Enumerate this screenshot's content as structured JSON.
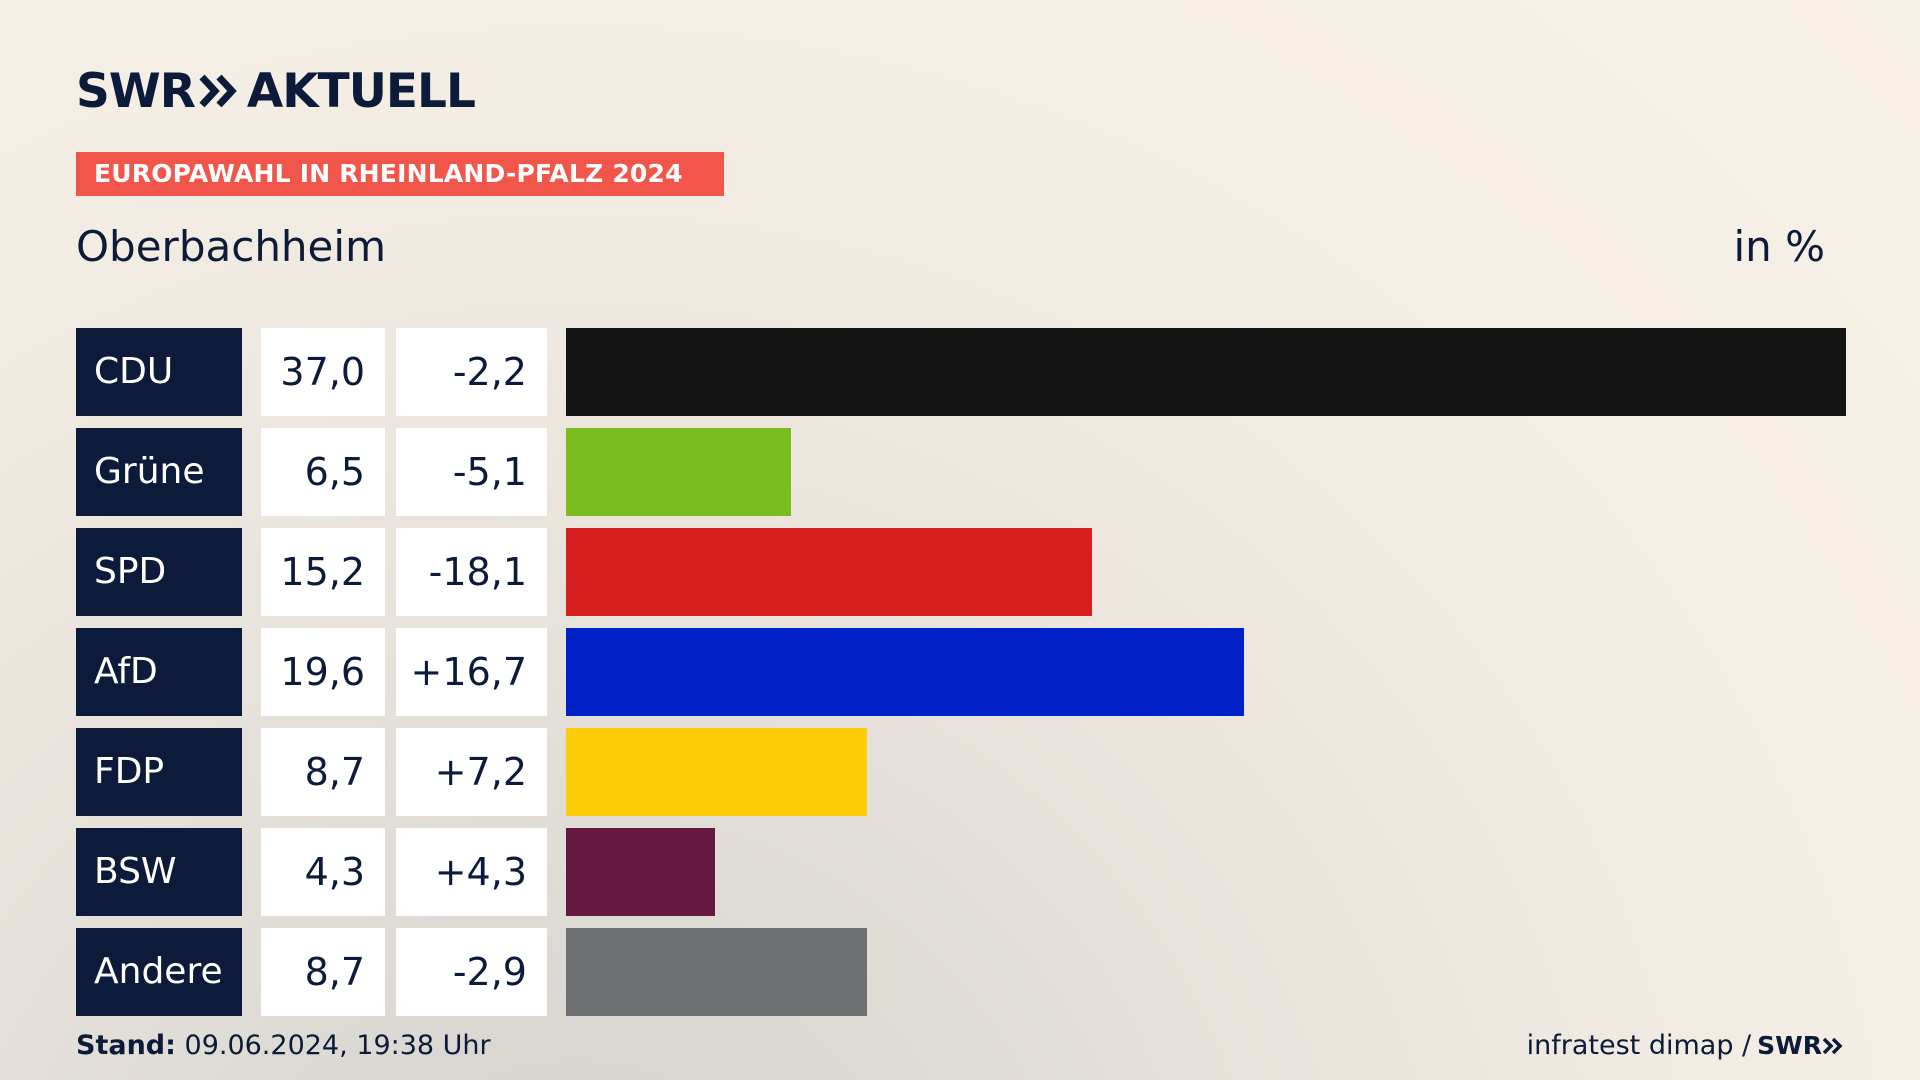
{
  "header": {
    "logo_left": "SWR",
    "logo_right": "AKTUELL",
    "tag": "EUROPAWAHL IN RHEINLAND-PFALZ 2024",
    "region": "Oberbachheim",
    "unit": "in %"
  },
  "chart_data": {
    "type": "bar",
    "categories": [
      "CDU",
      "Grüne",
      "SPD",
      "AfD",
      "FDP",
      "BSW",
      "Andere"
    ],
    "values": [
      37.0,
      6.5,
      15.2,
      19.6,
      8.7,
      4.3,
      8.7
    ],
    "value_labels": [
      "37,0",
      "6,5",
      "15,2",
      "19,6",
      "8,7",
      "4,3",
      "8,7"
    ],
    "diff_labels": [
      "-2,2",
      "-5,1",
      "-18,1",
      "+16,7",
      "+7,2",
      "+4,3",
      "-2,9"
    ],
    "colors": [
      "#141414",
      "#7abd1f",
      "#d71f1f",
      "#0020c8",
      "#ffcc0a",
      "#65183f",
      "#6f7072"
    ],
    "title": "",
    "xlabel": "",
    "ylabel": "",
    "xlim": [
      0,
      37.0
    ],
    "orientation": "horizontal",
    "grid": false
  },
  "footer": {
    "stand_label": "Stand:",
    "stand_value": "09.06.2024, 19:38 Uhr",
    "source": "infratest dimap /",
    "source_logo": "SWR"
  }
}
